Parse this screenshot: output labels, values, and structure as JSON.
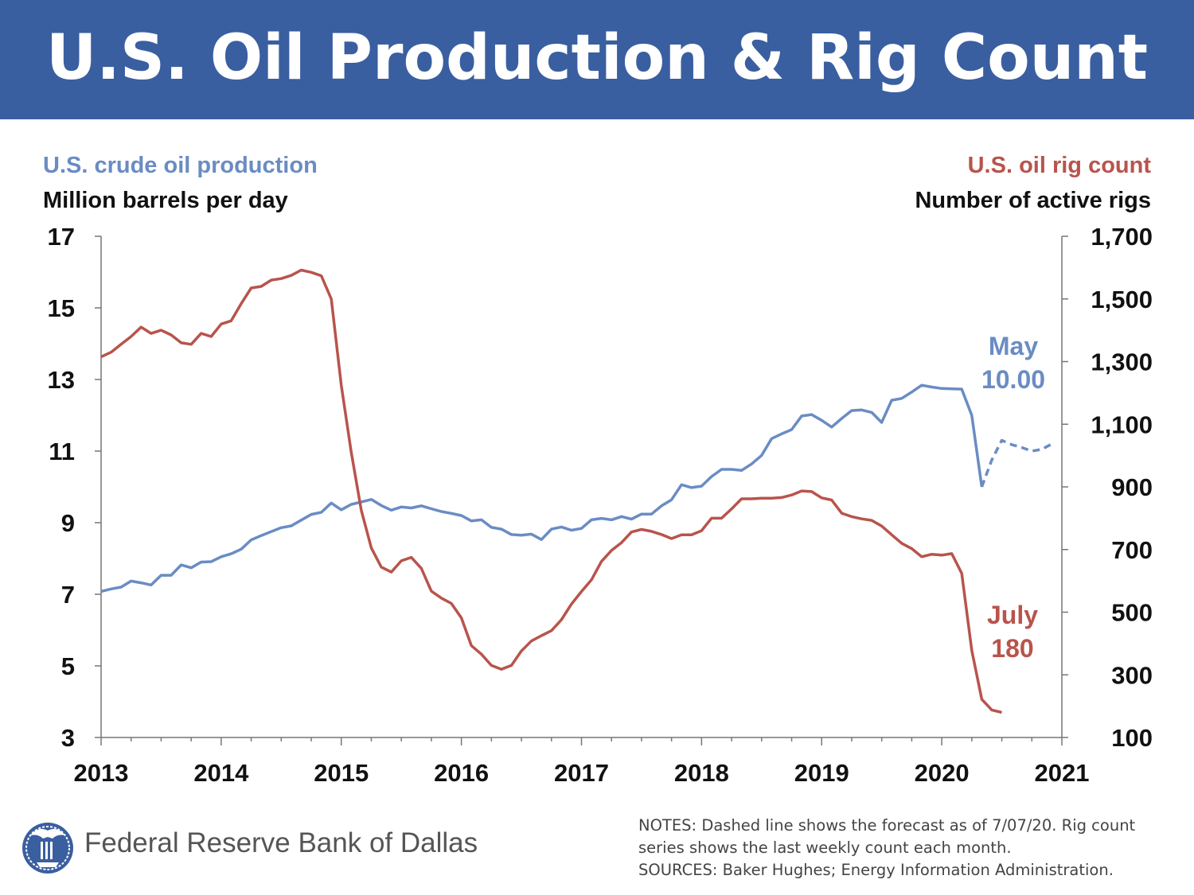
{
  "title": "U.S. Oil Production & Rig Count",
  "axes": {
    "left_series_label": "U.S. crude oil production",
    "left_unit_label": "Million barrels per day",
    "right_series_label": "U.S. oil rig count",
    "right_unit_label": "Number of active rigs"
  },
  "colors": {
    "banner": "#3a5fa0",
    "production": "#6a8cc4",
    "rigs": "#b8544c"
  },
  "annotations": {
    "production_month": "May",
    "production_value": "10.00",
    "rig_month": "July",
    "rig_value": "180"
  },
  "footer": {
    "logo_icon": "federal-reserve-eagle-seal",
    "org_name": "Federal Reserve Bank of Dallas",
    "notes_line1": "NOTES: Dashed line shows the forecast as of 7/07/20. Rig count",
    "notes_line2": "series shows the last weekly count each month.",
    "notes_line3": "SOURCES: Baker Hughes; Energy Information Administration."
  },
  "chart_data": {
    "type": "line",
    "title": "U.S. Oil Production & Rig Count",
    "x_start": 2013.0,
    "x_step": 0.08333,
    "xlim": [
      2013,
      2021
    ],
    "x_ticks": [
      "2013",
      "2014",
      "2015",
      "2016",
      "2017",
      "2018",
      "2019",
      "2020",
      "2021"
    ],
    "y_left": {
      "label": "Million barrels per day",
      "lim": [
        3,
        17
      ],
      "ticks": [
        "3",
        "5",
        "7",
        "9",
        "11",
        "13",
        "15",
        "17"
      ],
      "tick_values": [
        3,
        5,
        7,
        9,
        11,
        13,
        15,
        17
      ]
    },
    "y_right": {
      "label": "Number of active rigs",
      "lim": [
        100,
        1700
      ],
      "ticks": [
        "100",
        "300",
        "500",
        "700",
        "900",
        "1,100",
        "1,300",
        "1,500",
        "1,700"
      ],
      "tick_values": [
        100,
        300,
        500,
        700,
        900,
        1100,
        1300,
        1500,
        1700
      ]
    },
    "series": [
      {
        "name": "U.S. crude oil production",
        "axis": "left",
        "values": [
          7.08,
          7.15,
          7.2,
          7.37,
          7.32,
          7.26,
          7.53,
          7.53,
          7.82,
          7.74,
          7.9,
          7.91,
          8.05,
          8.13,
          8.26,
          8.52,
          8.64,
          8.75,
          8.86,
          8.91,
          9.07,
          9.23,
          9.29,
          9.55,
          9.36,
          9.51,
          9.58,
          9.65,
          9.48,
          9.35,
          9.44,
          9.41,
          9.47,
          9.39,
          9.31,
          9.26,
          9.2,
          9.05,
          9.08,
          8.87,
          8.82,
          8.67,
          8.65,
          8.68,
          8.53,
          8.82,
          8.88,
          8.79,
          8.84,
          9.08,
          9.12,
          9.08,
          9.17,
          9.1,
          9.24,
          9.24,
          9.47,
          9.64,
          10.06,
          9.98,
          10.02,
          10.29,
          10.49,
          10.49,
          10.46,
          10.64,
          10.88,
          11.35,
          11.48,
          11.6,
          11.98,
          12.02,
          11.86,
          11.67,
          11.91,
          12.13,
          12.15,
          12.08,
          11.8,
          12.42,
          12.47,
          12.65,
          12.84,
          12.79,
          12.75,
          12.74,
          12.73,
          12.0,
          10.0
        ],
        "forecast_start": 2020.333,
        "forecast_values": [
          10.0,
          10.75,
          11.3,
          11.18,
          11.1,
          11.0,
          11.05,
          11.2
        ]
      },
      {
        "name": "U.S. oil rig count",
        "axis": "right",
        "values": [
          1315,
          1330,
          1355,
          1380,
          1410,
          1390,
          1400,
          1385,
          1360,
          1355,
          1390,
          1380,
          1420,
          1430,
          1485,
          1535,
          1540,
          1560,
          1565,
          1575,
          1592,
          1585,
          1574,
          1500,
          1225,
          1010,
          825,
          705,
          644,
          628,
          664,
          675,
          640,
          567,
          545,
          528,
          482,
          393,
          366,
          330,
          318,
          330,
          376,
          408,
          425,
          441,
          476,
          526,
          566,
          603,
          662,
          697,
          722,
          756,
          764,
          758,
          748,
          735,
          747,
          747,
          760,
          800,
          800,
          830,
          862,
          862,
          864,
          864,
          866,
          874,
          887,
          885,
          865,
          858,
          816,
          805,
          798,
          793,
          775,
          747,
          720,
          703,
          677,
          685,
          682,
          687,
          624,
          378,
          222,
          188,
          180
        ]
      }
    ]
  }
}
